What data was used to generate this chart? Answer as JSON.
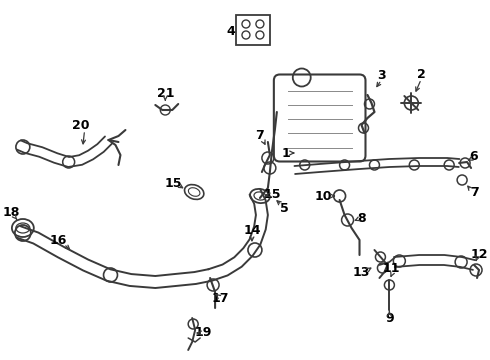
{
  "bg_color": "#ffffff",
  "lc": "#3a3a3a",
  "lc2": "#555555",
  "figsize": [
    4.9,
    3.6
  ],
  "dpi": 100,
  "xlim": [
    0,
    490
  ],
  "ylim": [
    0,
    360
  ]
}
